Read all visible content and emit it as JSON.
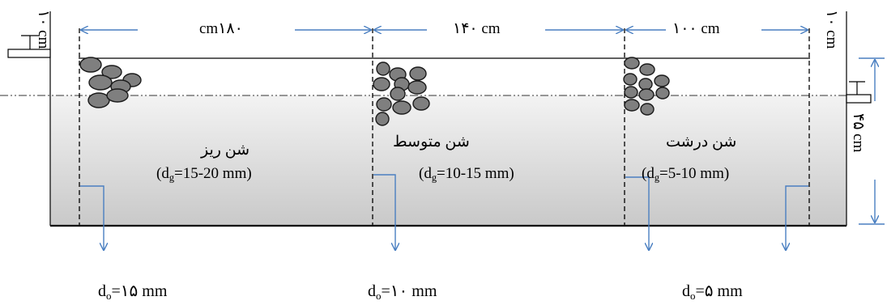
{
  "dimensions": {
    "left_gap": "۱۰ cm",
    "right_gap": "۱۰ cm",
    "zone1_length": "cm۱۸۰",
    "zone2_length": "۱۴۰ cm",
    "zone3_length": "۱۰۰ cm",
    "water_depth": "۴۵ cm"
  },
  "zones": [
    {
      "name": "شن ریز",
      "size_prefix": "(d",
      "size_sub": "g",
      "size_suffix": "=15-20 mm)"
    },
    {
      "name": "شن متوسط",
      "size_prefix": "(d",
      "size_sub": "g",
      "size_suffix": "=10-15 mm)"
    },
    {
      "name": "شن درشت",
      "size_prefix": "(d",
      "size_sub": "g",
      "size_suffix": "=5-10 mm)"
    }
  ],
  "outlets": [
    {
      "prefix": "d",
      "sub": "o",
      "suffix": "=۱۵ mm"
    },
    {
      "prefix": "d",
      "sub": "o",
      "suffix": "=۱۰ mm"
    },
    {
      "prefix": "d",
      "sub": "o",
      "suffix": "=۵ mm"
    }
  ],
  "colors": {
    "water_top": "#f3f3f3",
    "water_bottom": "#c9c9c9",
    "arrow": "#4a7fc1",
    "gravel": "#7f7f7f"
  }
}
